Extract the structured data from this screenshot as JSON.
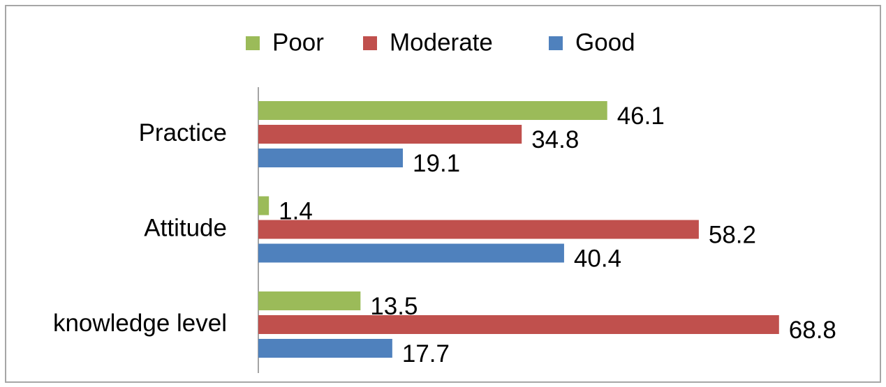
{
  "chart_data": {
    "type": "bar",
    "orientation": "horizontal",
    "categories": [
      "Practice",
      "Attitude",
      "knowledge level"
    ],
    "series": [
      {
        "name": "Poor",
        "color": "#9bbb59",
        "values": [
          46.1,
          1.4,
          13.5
        ]
      },
      {
        "name": "Moderate",
        "color": "#c0504d",
        "values": [
          34.8,
          58.2,
          68.8
        ]
      },
      {
        "name": "Good",
        "color": "#4f81bd",
        "values": [
          19.1,
          40.4,
          17.7
        ]
      }
    ],
    "legend": "top"
  }
}
